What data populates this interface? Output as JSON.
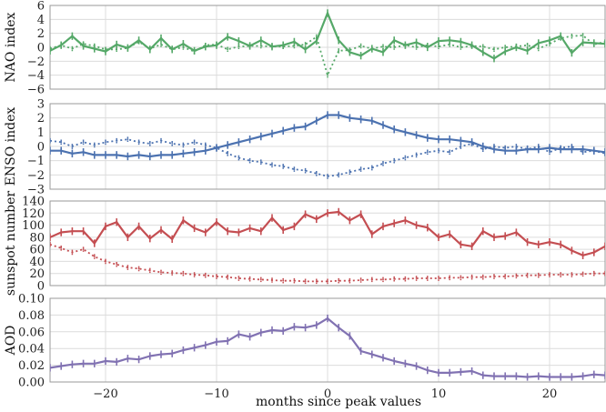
{
  "x_label": "months since peak values",
  "chart_data": [
    {
      "type": "line",
      "ylabel": "NAO index",
      "color": "#55a868",
      "xlim": [
        -25,
        25
      ],
      "ylim": [
        -6,
        6
      ],
      "yticks": [
        -6,
        -4,
        -2,
        0,
        2,
        4,
        6
      ],
      "xticks": [
        -20,
        -10,
        0,
        10,
        20
      ],
      "series": [
        {
          "name": "solid",
          "style": "solid",
          "x": [
            -25,
            -24,
            -23,
            -22,
            -21,
            -20,
            -19,
            -18,
            -17,
            -16,
            -15,
            -14,
            -13,
            -12,
            -11,
            -10,
            -9,
            -8,
            -7,
            -6,
            -5,
            -4,
            -3,
            -2,
            -1,
            0,
            1,
            2,
            3,
            4,
            5,
            6,
            7,
            8,
            9,
            10,
            11,
            12,
            13,
            14,
            15,
            16,
            17,
            18,
            19,
            20,
            21,
            22,
            23,
            24,
            25
          ],
          "values": [
            -0.5,
            0.3,
            1.6,
            0.2,
            -0.2,
            -0.6,
            0.4,
            -0.1,
            1.0,
            -0.3,
            1.3,
            -0.3,
            0.5,
            -0.5,
            0.1,
            0.3,
            1.5,
            0.9,
            0.2,
            1.0,
            0.1,
            0.3,
            0.8,
            -0.3,
            0.9,
            4.9,
            1.0,
            -0.7,
            -1.2,
            -0.2,
            -0.7,
            1.0,
            0.3,
            0.7,
            0.0,
            0.9,
            1.0,
            0.8,
            0.3,
            -0.7,
            -1.6,
            -0.6,
            0.0,
            -0.5,
            0.6,
            1.0,
            1.6,
            -0.8,
            0.7,
            0.6,
            0.5
          ]
        },
        {
          "name": "dotted",
          "style": "dotted",
          "x": [
            -25,
            -24,
            -23,
            -22,
            -21,
            -20,
            -19,
            -18,
            -17,
            -16,
            -15,
            -14,
            -13,
            -12,
            -11,
            -10,
            -9,
            -8,
            -7,
            -6,
            -5,
            -4,
            -3,
            -2,
            -1,
            0,
            1,
            2,
            3,
            4,
            5,
            6,
            7,
            8,
            9,
            10,
            11,
            12,
            13,
            14,
            15,
            16,
            17,
            18,
            19,
            20,
            21,
            22,
            23,
            24,
            25
          ],
          "values": [
            -0.2,
            0.3,
            -0.2,
            0.5,
            0.2,
            -0.3,
            -0.3,
            -0.1,
            0.8,
            -0.2,
            0.4,
            -0.3,
            0.0,
            -0.6,
            0.3,
            0.4,
            -0.3,
            0.1,
            0.2,
            0.2,
            0.1,
            0.1,
            0.2,
            0.4,
            1.5,
            -4.0,
            -0.5,
            -0.4,
            0.2,
            -0.2,
            0.1,
            0.0,
            0.3,
            0.0,
            0.3,
            0.1,
            0.4,
            0.0,
            0.2,
            0.1,
            -0.3,
            0.0,
            0.1,
            0.3,
            -0.2,
            0.5,
            1.3,
            1.6,
            1.7,
            0.4,
            0.8
          ]
        }
      ]
    },
    {
      "type": "line",
      "ylabel": "ENSO index",
      "color": "#4c72b0",
      "xlim": [
        -25,
        25
      ],
      "ylim": [
        -3,
        3
      ],
      "yticks": [
        -3,
        -2,
        -1,
        0,
        1,
        2,
        3
      ],
      "xticks": [
        -20,
        -10,
        0,
        10,
        20
      ],
      "series": [
        {
          "name": "solid",
          "style": "solid",
          "x": [
            -25,
            -24,
            -23,
            -22,
            -21,
            -20,
            -19,
            -18,
            -17,
            -16,
            -15,
            -14,
            -13,
            -12,
            -11,
            -10,
            -9,
            -8,
            -7,
            -6,
            -5,
            -4,
            -3,
            -2,
            -1,
            0,
            1,
            2,
            3,
            4,
            5,
            6,
            7,
            8,
            9,
            10,
            11,
            12,
            13,
            14,
            15,
            16,
            17,
            18,
            19,
            20,
            21,
            22,
            23,
            24,
            25
          ],
          "values": [
            -0.3,
            -0.3,
            -0.5,
            -0.4,
            -0.6,
            -0.6,
            -0.6,
            -0.7,
            -0.6,
            -0.7,
            -0.6,
            -0.6,
            -0.5,
            -0.4,
            -0.3,
            -0.1,
            0.1,
            0.3,
            0.5,
            0.7,
            0.9,
            1.1,
            1.3,
            1.4,
            1.8,
            2.2,
            2.2,
            2.0,
            1.9,
            1.8,
            1.5,
            1.2,
            1.0,
            0.8,
            0.6,
            0.5,
            0.5,
            0.4,
            0.3,
            0.0,
            -0.2,
            -0.3,
            -0.3,
            -0.2,
            -0.2,
            -0.1,
            -0.2,
            -0.2,
            -0.2,
            -0.3,
            -0.4
          ]
        },
        {
          "name": "dotted",
          "style": "dotted",
          "x": [
            -25,
            -24,
            -23,
            -22,
            -21,
            -20,
            -19,
            -18,
            -17,
            -16,
            -15,
            -14,
            -13,
            -12,
            -11,
            -10,
            -9,
            -8,
            -7,
            -6,
            -5,
            -4,
            -3,
            -2,
            -1,
            0,
            1,
            2,
            3,
            4,
            5,
            6,
            7,
            8,
            9,
            10,
            11,
            12,
            13,
            14,
            15,
            16,
            17,
            18,
            19,
            20,
            21,
            22,
            23,
            24,
            25
          ],
          "values": [
            0.4,
            0.3,
            0.0,
            0.3,
            0.1,
            0.3,
            0.4,
            0.5,
            0.3,
            0.2,
            0.4,
            0.2,
            0.1,
            0.3,
            0.1,
            -0.1,
            -0.5,
            -0.8,
            -1.0,
            -1.1,
            -1.3,
            -1.4,
            -1.6,
            -1.7,
            -1.9,
            -2.1,
            -2.0,
            -1.8,
            -1.6,
            -1.5,
            -1.2,
            -1.0,
            -0.8,
            -0.6,
            -0.4,
            -0.3,
            -0.4,
            0.0,
            0.2,
            -0.2,
            0.0,
            -0.1,
            0.0,
            -0.2,
            0.0,
            -0.4,
            -0.1,
            0.0,
            -0.4,
            -0.3,
            -0.5
          ]
        }
      ]
    },
    {
      "type": "line",
      "ylabel": "sunspot number",
      "color": "#c44e52",
      "xlim": [
        -25,
        25
      ],
      "ylim": [
        0,
        140
      ],
      "yticks": [
        0,
        20,
        40,
        60,
        80,
        100,
        120,
        140
      ],
      "xticks": [
        -20,
        -10,
        0,
        10,
        20
      ],
      "series": [
        {
          "name": "solid",
          "style": "solid",
          "x": [
            -25,
            -24,
            -23,
            -22,
            -21,
            -20,
            -19,
            -18,
            -17,
            -16,
            -15,
            -14,
            -13,
            -12,
            -11,
            -10,
            -9,
            -8,
            -7,
            -6,
            -5,
            -4,
            -3,
            -2,
            -1,
            0,
            1,
            2,
            3,
            4,
            5,
            6,
            7,
            8,
            9,
            10,
            11,
            12,
            13,
            14,
            15,
            16,
            17,
            18,
            19,
            20,
            21,
            22,
            23,
            24,
            25
          ],
          "values": [
            80,
            88,
            90,
            90,
            70,
            98,
            105,
            80,
            98,
            78,
            92,
            77,
            108,
            95,
            88,
            105,
            90,
            88,
            95,
            90,
            112,
            92,
            98,
            118,
            110,
            120,
            122,
            108,
            118,
            85,
            98,
            103,
            108,
            100,
            96,
            80,
            85,
            68,
            65,
            90,
            80,
            82,
            88,
            72,
            68,
            72,
            68,
            58,
            50,
            55,
            65
          ]
        },
        {
          "name": "dotted",
          "style": "dotted",
          "x": [
            -25,
            -24,
            -23,
            -22,
            -21,
            -20,
            -19,
            -18,
            -17,
            -16,
            -15,
            -14,
            -13,
            -12,
            -11,
            -10,
            -9,
            -8,
            -7,
            -6,
            -5,
            -4,
            -3,
            -2,
            -1,
            0,
            1,
            2,
            3,
            4,
            5,
            6,
            7,
            8,
            9,
            10,
            11,
            12,
            13,
            14,
            15,
            16,
            17,
            18,
            19,
            20,
            21,
            22,
            23,
            24,
            25
          ],
          "values": [
            68,
            62,
            55,
            60,
            48,
            40,
            35,
            30,
            28,
            25,
            22,
            21,
            20,
            18,
            17,
            15,
            14,
            12,
            11,
            10,
            9,
            8,
            8,
            7,
            7,
            7,
            8,
            8,
            9,
            10,
            10,
            11,
            11,
            12,
            12,
            12,
            13,
            13,
            14,
            14,
            15,
            15,
            16,
            17,
            17,
            18,
            18,
            18,
            19,
            20,
            20
          ]
        }
      ]
    },
    {
      "type": "line",
      "ylabel": "AOD",
      "color": "#8172b2",
      "xlim": [
        -25,
        25
      ],
      "ylim": [
        0,
        0.1
      ],
      "yticks": [
        0,
        0.02,
        0.04,
        0.06,
        0.08,
        0.1
      ],
      "xticks": [
        -20,
        -10,
        0,
        10,
        20
      ],
      "series": [
        {
          "name": "solid",
          "style": "solid",
          "x": [
            -25,
            -24,
            -23,
            -22,
            -21,
            -20,
            -19,
            -18,
            -17,
            -16,
            -15,
            -14,
            -13,
            -12,
            -11,
            -10,
            -9,
            -8,
            -7,
            -6,
            -5,
            -4,
            -3,
            -2,
            -1,
            0,
            1,
            2,
            3,
            4,
            5,
            6,
            7,
            8,
            9,
            10,
            11,
            12,
            13,
            14,
            15,
            16,
            17,
            18,
            19,
            20,
            21,
            22,
            23,
            24,
            25
          ],
          "values": [
            0.017,
            0.019,
            0.021,
            0.022,
            0.022,
            0.025,
            0.024,
            0.028,
            0.027,
            0.031,
            0.033,
            0.034,
            0.038,
            0.041,
            0.044,
            0.048,
            0.049,
            0.057,
            0.054,
            0.059,
            0.062,
            0.061,
            0.066,
            0.065,
            0.068,
            0.076,
            0.065,
            0.055,
            0.037,
            0.033,
            0.029,
            0.025,
            0.022,
            0.019,
            0.014,
            0.011,
            0.011,
            0.012,
            0.013,
            0.008,
            0.007,
            0.007,
            0.007,
            0.006,
            0.007,
            0.006,
            0.006,
            0.006,
            0.007,
            0.009,
            0.008
          ]
        }
      ]
    }
  ],
  "x_tick_labels": [
    "−20",
    "−10",
    "0",
    "10",
    "20"
  ]
}
